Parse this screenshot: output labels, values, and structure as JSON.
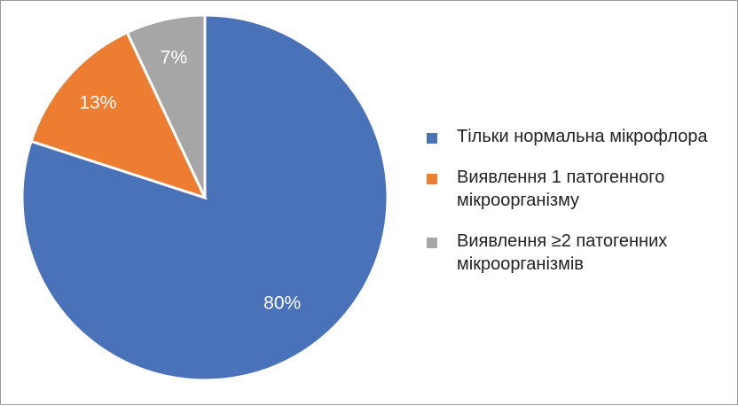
{
  "chart_data": {
    "type": "pie",
    "title": "",
    "series": [
      {
        "name": "",
        "values": [
          80,
          13,
          7
        ]
      }
    ],
    "categories": [
      "Тільки нормальна мікрофлора",
      "Виявлення 1 патогенного мікроорганізму",
      "Виявлення ≥2 патогенних мікроорганізмів"
    ],
    "value_labels": [
      "80%",
      "13%",
      "7%"
    ],
    "colors": [
      "#4a72b8",
      "#ec7d31",
      "#a6a6a6"
    ],
    "start_angle": "12 o'clock",
    "direction": "clockwise",
    "legend_position": "right"
  },
  "legend": {
    "items": [
      {
        "label": "Тільки нормальна мікрофлора",
        "color": "#4a72b8"
      },
      {
        "label": "Виявлення 1 патогенного мікроорганізму",
        "color": "#ec7d31"
      },
      {
        "label": "Виявлення ≥2 патогенних мікроорганізмів",
        "color": "#a6a6a6"
      }
    ]
  }
}
